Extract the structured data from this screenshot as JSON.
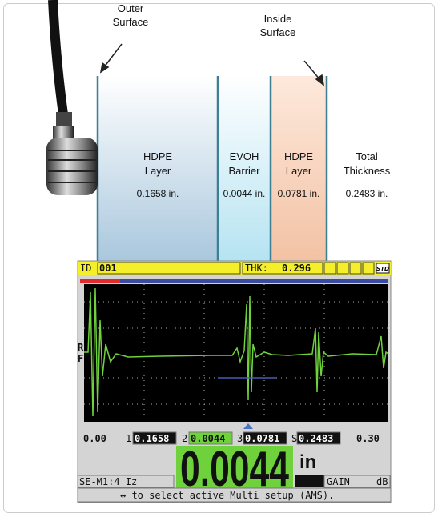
{
  "annotations": {
    "outer_surface": [
      "Outer",
      "Surface"
    ],
    "inside_surface": [
      "Inside",
      "Surface"
    ]
  },
  "layers": [
    {
      "name": [
        "HDPE",
        "Layer"
      ],
      "thickness": "0.1658 in."
    },
    {
      "name": [
        "EVOH",
        "Barrier"
      ],
      "thickness": "0.0044 in."
    },
    {
      "name": [
        "HDPE",
        "Layer"
      ],
      "thickness": "0.0781 in."
    }
  ],
  "total": {
    "name": [
      "Total",
      "Thickness"
    ],
    "thickness": "0.2483 in."
  },
  "screen": {
    "id_label": "ID",
    "id_value": "001",
    "thk_label": "THK:",
    "thk_value": "0.296",
    "std": "STD",
    "rf": [
      "R",
      "F"
    ],
    "range_start": "0.00",
    "range_end": "0.30",
    "readings": [
      {
        "index": "1",
        "value": "0.1658"
      },
      {
        "index": "2",
        "value": "0.0044"
      },
      {
        "index": "3",
        "value": "0.0781"
      },
      {
        "index": "S",
        "value": "0.2483"
      }
    ],
    "main_value": "0.0044",
    "unit": "in",
    "setup": "SE-M1:4 Iz",
    "gain": "GAIN",
    "db": "dB",
    "help": "↔ to select active Multi setup (AMS)."
  }
}
